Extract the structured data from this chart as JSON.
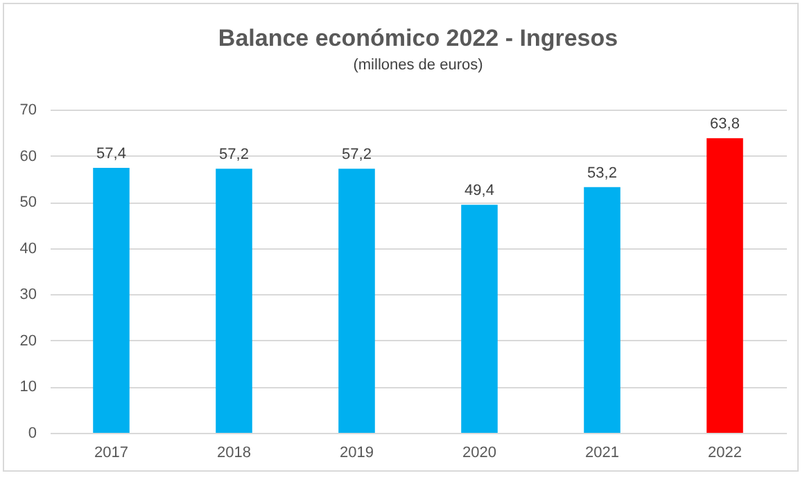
{
  "chart_data": {
    "type": "bar",
    "title": "Balance económico 2022 - Ingresos",
    "subtitle": "(millones de euros)",
    "categories": [
      "2017",
      "2018",
      "2019",
      "2020",
      "2021",
      "2022"
    ],
    "values": [
      57.4,
      57.2,
      57.2,
      49.4,
      53.2,
      63.8
    ],
    "value_labels": [
      "57,4",
      "57,2",
      "57,2",
      "49,4",
      "53,2",
      "63,8"
    ],
    "colors": [
      "#00b0f0",
      "#00b0f0",
      "#00b0f0",
      "#00b0f0",
      "#00b0f0",
      "#ff0000"
    ],
    "ylim": [
      0,
      70
    ],
    "yticks": [
      0,
      10,
      20,
      30,
      40,
      50,
      60,
      70
    ],
    "grid": "y"
  }
}
